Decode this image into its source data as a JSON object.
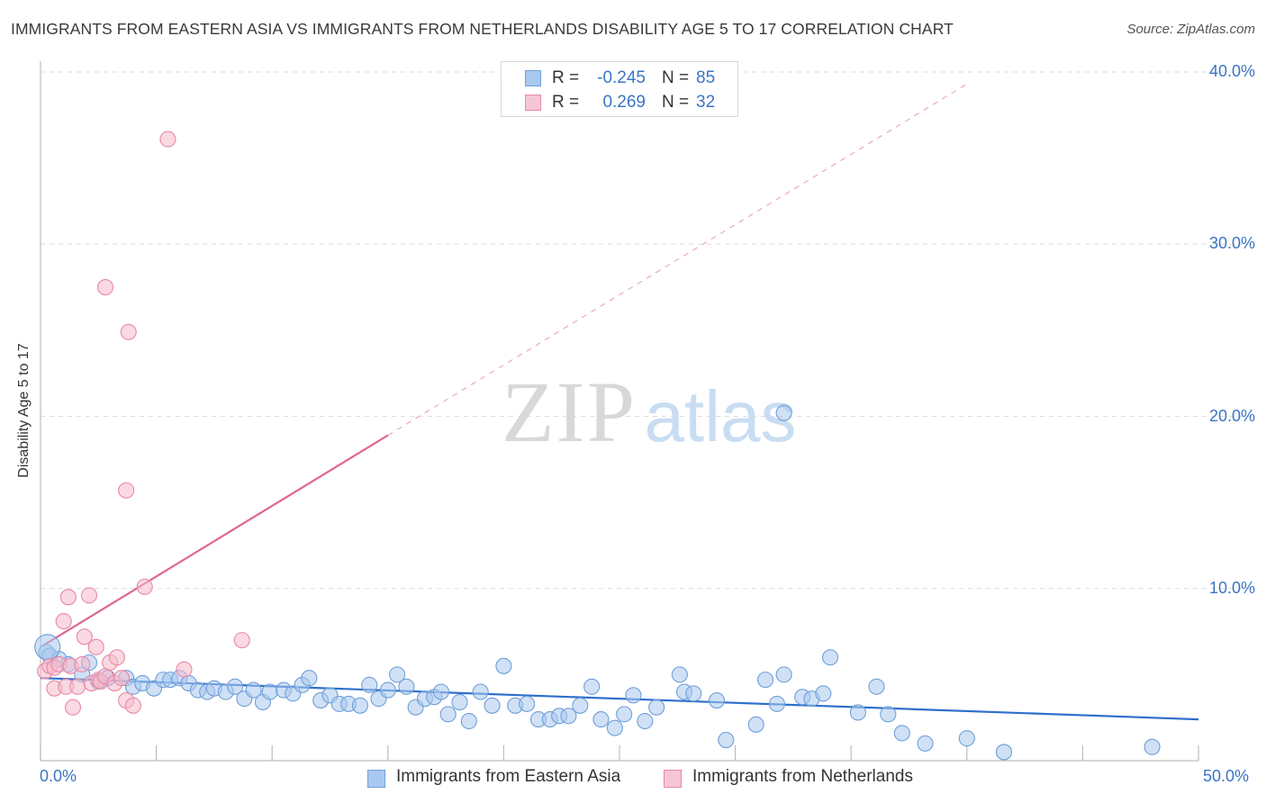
{
  "header": {
    "title": "IMMIGRANTS FROM EASTERN ASIA VS IMMIGRANTS FROM NETHERLANDS DISABILITY AGE 5 TO 17 CORRELATION CHART",
    "source": "Source: ZipAtlas.com"
  },
  "watermark": {
    "part1": "ZIP",
    "part2": "atlas"
  },
  "colors": {
    "blue_fill": "#a9c8ef",
    "blue_stroke": "#6f9fd8",
    "blue_line": "#2e6fcb",
    "pink_fill": "#f6b9cb",
    "pink_stroke": "#e889a6",
    "pink_line": "#e0678f",
    "axis_text": "#3a75c4",
    "grid": "#dcdcdc"
  },
  "stats": {
    "rows": [
      {
        "r_label": "R =",
        "r_value": "-0.245",
        "n_label": "N =",
        "n_value": "85"
      },
      {
        "r_label": "R =",
        "r_value": "0.269",
        "n_label": "N =",
        "n_value": "32"
      }
    ]
  },
  "legend": {
    "items": [
      {
        "label": "Immigrants from Eastern Asia"
      },
      {
        "label": "Immigrants from Netherlands"
      }
    ]
  },
  "chart_data": {
    "type": "scatter",
    "title": "IMMIGRANTS FROM EASTERN ASIA VS IMMIGRANTS FROM NETHERLANDS DISABILITY AGE 5 TO 17 CORRELATION CHART",
    "xlabel": "",
    "ylabel": "Disability Age 5 to 17",
    "xlim": [
      0,
      50
    ],
    "ylim": [
      0,
      40
    ],
    "x_tick_labels": [
      "0.0%",
      "50.0%"
    ],
    "y_ticks": [
      {
        "value": 10,
        "label": "10.0%"
      },
      {
        "value": 20,
        "label": "20.0%"
      },
      {
        "value": 30,
        "label": "30.0%"
      },
      {
        "value": 40,
        "label": "40.0%"
      }
    ],
    "grid": true,
    "series": [
      {
        "name": "Immigrants from Eastern Asia",
        "color": "blue",
        "r": -0.245,
        "n": 85,
        "trend": {
          "x": [
            0,
            50
          ],
          "y": [
            4.8,
            2.4
          ]
        },
        "points": [
          [
            0.25,
            6.3
          ],
          [
            0.4,
            6.1
          ],
          [
            0.8,
            5.9
          ],
          [
            1.2,
            5.6
          ],
          [
            1.8,
            5.0
          ],
          [
            2.1,
            5.7
          ],
          [
            2.5,
            4.6
          ],
          [
            2.9,
            4.8
          ],
          [
            3.7,
            4.8
          ],
          [
            4.0,
            4.3
          ],
          [
            4.4,
            4.5
          ],
          [
            4.9,
            4.2
          ],
          [
            5.3,
            4.7
          ],
          [
            5.6,
            4.7
          ],
          [
            6.0,
            4.8
          ],
          [
            6.4,
            4.5
          ],
          [
            6.8,
            4.1
          ],
          [
            7.2,
            4.0
          ],
          [
            7.5,
            4.2
          ],
          [
            8.0,
            4.0
          ],
          [
            8.4,
            4.3
          ],
          [
            8.8,
            3.6
          ],
          [
            9.2,
            4.1
          ],
          [
            9.6,
            3.4
          ],
          [
            9.9,
            4.0
          ],
          [
            10.5,
            4.1
          ],
          [
            10.9,
            3.9
          ],
          [
            11.3,
            4.4
          ],
          [
            11.6,
            4.8
          ],
          [
            12.1,
            3.5
          ],
          [
            12.5,
            3.8
          ],
          [
            12.9,
            3.3
          ],
          [
            13.3,
            3.3
          ],
          [
            13.8,
            3.2
          ],
          [
            14.2,
            4.4
          ],
          [
            14.6,
            3.6
          ],
          [
            15.0,
            4.1
          ],
          [
            15.4,
            5.0
          ],
          [
            15.8,
            4.3
          ],
          [
            16.2,
            3.1
          ],
          [
            16.6,
            3.6
          ],
          [
            17.0,
            3.7
          ],
          [
            17.3,
            4.0
          ],
          [
            17.6,
            2.7
          ],
          [
            18.1,
            3.4
          ],
          [
            18.5,
            2.3
          ],
          [
            19.0,
            4.0
          ],
          [
            19.5,
            3.2
          ],
          [
            20.0,
            5.5
          ],
          [
            20.5,
            3.2
          ],
          [
            21.0,
            3.3
          ],
          [
            21.5,
            2.4
          ],
          [
            22.0,
            2.4
          ],
          [
            22.4,
            2.6
          ],
          [
            22.8,
            2.6
          ],
          [
            23.3,
            3.2
          ],
          [
            23.8,
            4.3
          ],
          [
            24.2,
            2.4
          ],
          [
            24.8,
            1.9
          ],
          [
            25.2,
            2.7
          ],
          [
            25.6,
            3.8
          ],
          [
            26.1,
            2.3
          ],
          [
            26.6,
            3.1
          ],
          [
            27.6,
            5.0
          ],
          [
            27.8,
            4.0
          ],
          [
            28.2,
            3.9
          ],
          [
            29.2,
            3.5
          ],
          [
            29.6,
            1.2
          ],
          [
            30.9,
            2.1
          ],
          [
            31.3,
            4.7
          ],
          [
            31.8,
            3.3
          ],
          [
            32.1,
            5.0
          ],
          [
            32.9,
            3.7
          ],
          [
            33.3,
            3.6
          ],
          [
            33.8,
            3.9
          ],
          [
            34.1,
            6.0
          ],
          [
            35.3,
            2.8
          ],
          [
            36.1,
            4.3
          ],
          [
            36.6,
            2.7
          ],
          [
            32.1,
            20.2
          ],
          [
            37.2,
            1.6
          ],
          [
            38.2,
            1.0
          ],
          [
            40.0,
            1.3
          ],
          [
            41.6,
            0.5
          ],
          [
            48.0,
            0.8
          ]
        ]
      },
      {
        "name": "Immigrants from Netherlands",
        "color": "pink",
        "r": 0.269,
        "n": 32,
        "trend": {
          "x": [
            0,
            15
          ],
          "y": [
            6.6,
            18.9
          ]
        },
        "trend_dashed": {
          "x": [
            15,
            40
          ],
          "y": [
            18.9,
            39.3
          ]
        },
        "points": [
          [
            0.2,
            5.2
          ],
          [
            0.4,
            5.5
          ],
          [
            0.6,
            5.4
          ],
          [
            0.8,
            5.6
          ],
          [
            0.6,
            4.2
          ],
          [
            1.0,
            8.1
          ],
          [
            1.2,
            9.5
          ],
          [
            1.1,
            4.3
          ],
          [
            1.3,
            5.5
          ],
          [
            1.4,
            3.1
          ],
          [
            1.6,
            4.3
          ],
          [
            1.8,
            5.6
          ],
          [
            1.9,
            7.2
          ],
          [
            2.1,
            9.6
          ],
          [
            2.2,
            4.5
          ],
          [
            2.4,
            6.6
          ],
          [
            2.5,
            4.7
          ],
          [
            2.6,
            4.6
          ],
          [
            2.8,
            4.9
          ],
          [
            3.0,
            5.7
          ],
          [
            3.2,
            4.5
          ],
          [
            3.3,
            6.0
          ],
          [
            3.5,
            4.8
          ],
          [
            3.7,
            3.5
          ],
          [
            4.0,
            3.2
          ],
          [
            2.8,
            27.5
          ],
          [
            3.8,
            24.9
          ],
          [
            3.7,
            15.7
          ],
          [
            5.5,
            36.1
          ],
          [
            4.5,
            10.1
          ],
          [
            6.2,
            5.3
          ],
          [
            8.7,
            7.0
          ]
        ]
      }
    ]
  }
}
